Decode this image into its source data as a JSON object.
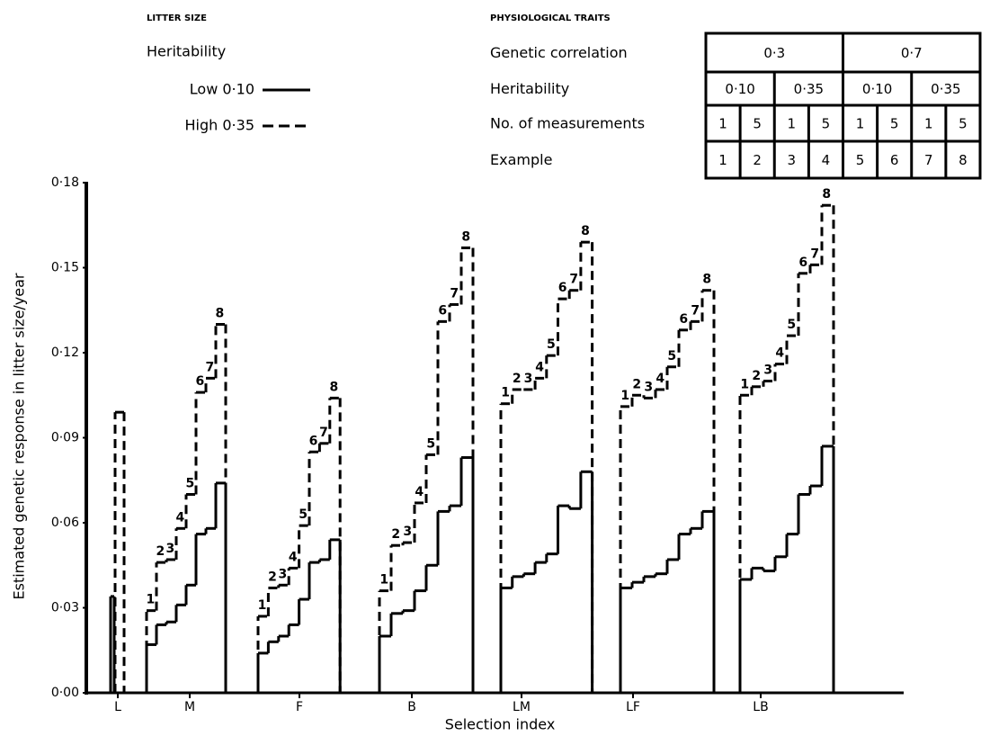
{
  "chart_data": {
    "type": "step",
    "legend_title": "LITTER SIZE",
    "legend_subtitle": "Heritability",
    "y_label": "Estimated genetic response in litter size/year",
    "x_label": "Selection index",
    "ylim": [
      0,
      0.18
    ],
    "yticks": [
      {
        "value": 0,
        "label": "0·00"
      },
      {
        "value": 0.03,
        "label": "0·03"
      },
      {
        "value": 0.06,
        "label": "0·06"
      },
      {
        "value": 0.09,
        "label": "0·09"
      },
      {
        "value": 0.12,
        "label": "0·12"
      },
      {
        "value": 0.15,
        "label": "0·15"
      },
      {
        "value": 0.18,
        "label": "0·18"
      }
    ],
    "categories": [
      "L",
      "M",
      "F",
      "B",
      "LM",
      "LF",
      "LB"
    ],
    "series": [
      {
        "name": "Low 0·10",
        "color": "#000000",
        "dashed": false,
        "values": [
          [
            0.034
          ],
          [
            0.017,
            0.024,
            0.025,
            0.031,
            0.038,
            0.056,
            0.058,
            0.074
          ],
          [
            0.014,
            0.018,
            0.02,
            0.024,
            0.033,
            0.046,
            0.047,
            0.054
          ],
          [
            0.02,
            0.028,
            0.029,
            0.036,
            0.045,
            0.064,
            0.066,
            0.083
          ],
          [
            0.037,
            0.041,
            0.042,
            0.046,
            0.049,
            0.066,
            0.065,
            0.078
          ],
          [
            0.037,
            0.039,
            0.041,
            0.042,
            0.047,
            0.056,
            0.058,
            0.064
          ],
          [
            0.04,
            0.044,
            0.043,
            0.048,
            0.056,
            0.07,
            0.073,
            0.087
          ]
        ]
      },
      {
        "name": "High 0·35",
        "color": "#000000",
        "dashed": true,
        "values": [
          [
            0.099
          ],
          [
            0.029,
            0.046,
            0.047,
            0.058,
            0.07,
            0.106,
            0.111,
            0.13
          ],
          [
            0.027,
            0.037,
            0.038,
            0.044,
            0.059,
            0.085,
            0.088,
            0.104
          ],
          [
            0.036,
            0.052,
            0.053,
            0.067,
            0.084,
            0.131,
            0.137,
            0.157
          ],
          [
            0.102,
            0.107,
            0.107,
            0.111,
            0.119,
            0.139,
            0.142,
            0.159
          ],
          [
            0.101,
            0.105,
            0.104,
            0.107,
            0.115,
            0.128,
            0.131,
            0.142
          ],
          [
            0.105,
            0.108,
            0.11,
            0.116,
            0.126,
            0.148,
            0.151,
            0.172
          ]
        ]
      }
    ],
    "key": {
      "title": "PHYSIOLOGICAL TRAITS",
      "rows": [
        {
          "label": "Genetic correlation",
          "cells": [
            "0·3",
            "0·7"
          ]
        },
        {
          "label": "Heritability",
          "cells": [
            "0·10",
            "0·35",
            "0·10",
            "0·35"
          ]
        },
        {
          "label": "No. of measurements",
          "cells": [
            1,
            5,
            1,
            5,
            1,
            5,
            1,
            5
          ]
        },
        {
          "label": "Example",
          "cells": [
            1,
            2,
            3,
            4,
            5,
            6,
            7,
            8
          ]
        }
      ]
    }
  }
}
